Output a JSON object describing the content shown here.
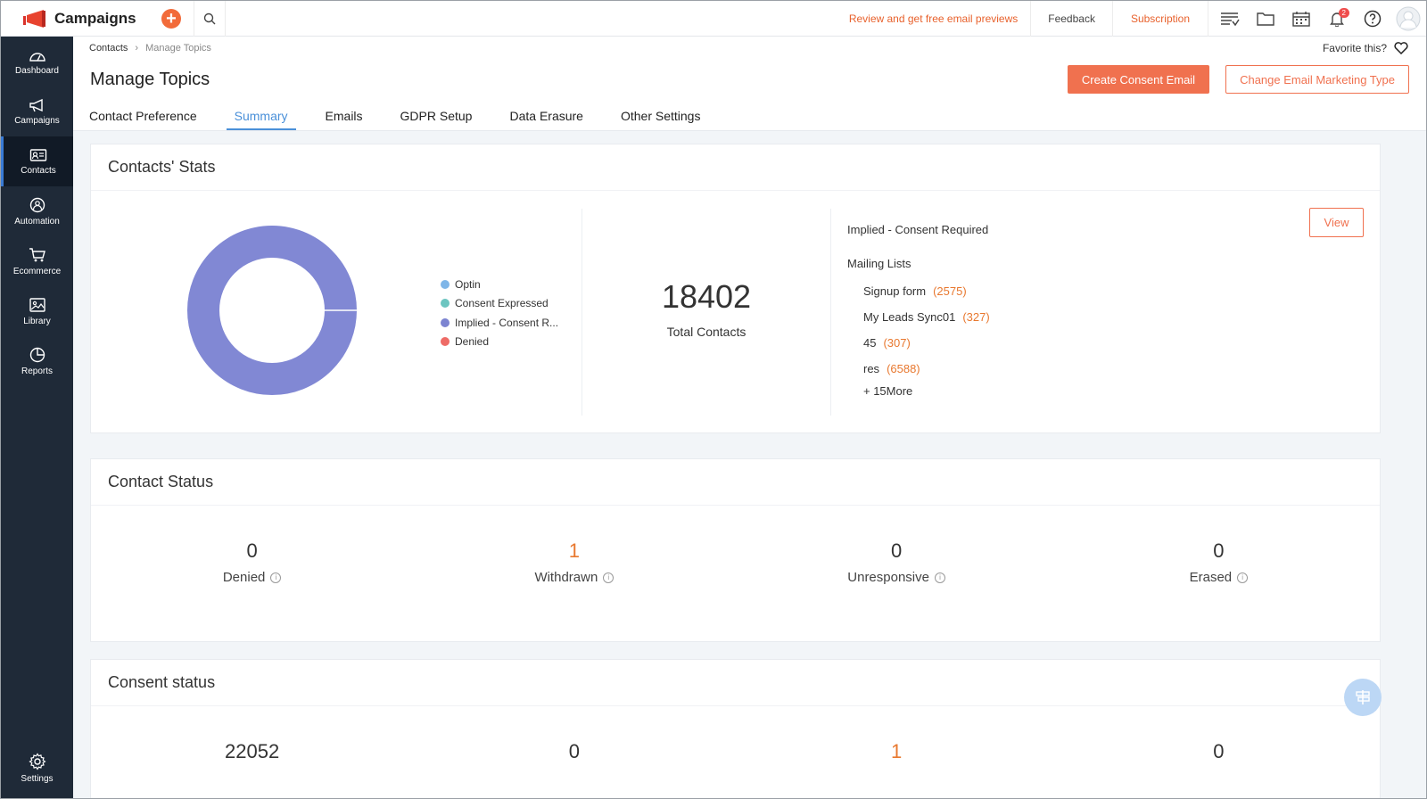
{
  "app": {
    "name": "Campaigns"
  },
  "topbar": {
    "review_link": "Review and get free email previews",
    "feedback": "Feedback",
    "subscription": "Subscription",
    "notification_count": "2"
  },
  "sidebar": {
    "items": [
      {
        "label": "Dashboard",
        "icon": "dashboard-icon"
      },
      {
        "label": "Campaigns",
        "icon": "megaphone-icon"
      },
      {
        "label": "Contacts",
        "icon": "contact-card-icon"
      },
      {
        "label": "Automation",
        "icon": "automation-icon"
      },
      {
        "label": "Ecommerce",
        "icon": "cart-icon"
      },
      {
        "label": "Library",
        "icon": "library-icon"
      },
      {
        "label": "Reports",
        "icon": "pie-icon"
      }
    ],
    "settings": "Settings"
  },
  "breadcrumb": {
    "parent": "Contacts",
    "current": "Manage Topics"
  },
  "favorite": "Favorite this?",
  "page": {
    "title": "Manage Topics",
    "create_button": "Create Consent Email",
    "change_button": "Change Email Marketing Type"
  },
  "tabs": [
    "Contact Preference",
    "Summary",
    "Emails",
    "GDPR Setup",
    "Data Erasure",
    "Other Settings"
  ],
  "active_tab": "Summary",
  "stats": {
    "title": "Contacts' Stats",
    "legend": [
      {
        "label": "Optin",
        "color": "#7fb6e8"
      },
      {
        "label": "Consent Expressed",
        "color": "#6cc5c0"
      },
      {
        "label": "Implied - Consent R...",
        "color": "#7c84d1"
      },
      {
        "label": "Denied",
        "color": "#ee6b66"
      }
    ],
    "donut_color": "#8188d4",
    "total_value": "18402",
    "total_label": "Total Contacts",
    "right_heading": "Implied - Consent Required",
    "mailing_lists_label": "Mailing Lists",
    "mailing_lists": [
      {
        "name": "Signup form",
        "count": "(2575)"
      },
      {
        "name": "My Leads Sync01",
        "count": "(327)"
      },
      {
        "name": "45",
        "count": "(307)"
      },
      {
        "name": "res",
        "count": "(6588)"
      }
    ],
    "more": "+ 15More",
    "view_button": "View"
  },
  "contact_status": {
    "title": "Contact Status",
    "metrics": [
      {
        "value": "0",
        "label": "Denied"
      },
      {
        "value": "1",
        "label": "Withdrawn"
      },
      {
        "value": "0",
        "label": "Unresponsive"
      },
      {
        "value": "0",
        "label": "Erased"
      }
    ]
  },
  "consent_status": {
    "title": "Consent status",
    "values": [
      "22052",
      "0",
      "1",
      "0"
    ]
  }
}
